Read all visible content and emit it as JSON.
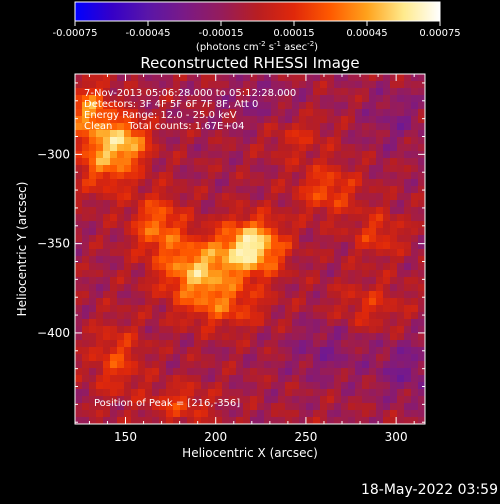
{
  "chart_data": {
    "type": "heatmap",
    "title": "Reconstructed RHESSI Image",
    "xlabel": "Heliocentric X (arcsec)",
    "ylabel": "Heliocentric Y (arcsec)",
    "xlim": [
      122,
      316
    ],
    "ylim": [
      -451,
      -255
    ],
    "x_ticks": [
      150,
      200,
      250,
      300
    ],
    "y_ticks": [
      -300,
      -350,
      -400
    ],
    "colorbar": {
      "min": -0.00075,
      "max": 0.00075,
      "ticks": [
        "-0.00075",
        "-0.00045",
        "-0.00015",
        "0.00015",
        "0.00045",
        "0.00075"
      ],
      "unit_text": "(photons cm",
      "unit_sup1": "-2",
      "unit_mid": " s",
      "unit_sup2": "-1",
      "unit_end": " asec",
      "unit_sup3": "-2",
      "unit_close": ")",
      "colors": [
        "#0000ff",
        "#3500c8",
        "#5a16a8",
        "#7a1a86",
        "#951c5c",
        "#b81e22",
        "#e0280a",
        "#ff5a00",
        "#ffa21c",
        "#ffea8c",
        "#ffffff"
      ]
    },
    "annotations": [
      "7-Nov-2013 05:06:28.000 to 05:12:28.000",
      "Detectors: 3F 4F 5F 6F 7F 8F, Att 0",
      "Energy Range: 12.0 - 25.0 keV",
      "Clean     Total counts: 1.67E+04"
    ],
    "peak_label": "Position of Peak = [216,-356]",
    "peak": [
      216,
      -356
    ],
    "blobs": [
      {
        "x": 220,
        "y": -352,
        "value": 0.00072,
        "sx": 12,
        "sy": 11
      },
      {
        "x": 190,
        "y": -365,
        "value": 0.00055,
        "sx": 14,
        "sy": 12
      },
      {
        "x": 168,
        "y": -340,
        "value": 0.0004,
        "sx": 10,
        "sy": 12
      },
      {
        "x": 140,
        "y": -300,
        "value": 0.00048,
        "sx": 12,
        "sy": 14
      },
      {
        "x": 130,
        "y": -275,
        "value": 0.00042,
        "sx": 8,
        "sy": 10
      },
      {
        "x": 152,
        "y": -292,
        "value": 0.00035,
        "sx": 8,
        "sy": 8
      },
      {
        "x": 262,
        "y": -320,
        "value": 0.00032,
        "sx": 12,
        "sy": 10
      },
      {
        "x": 290,
        "y": -345,
        "value": 0.00025,
        "sx": 10,
        "sy": 9
      },
      {
        "x": 205,
        "y": -385,
        "value": 0.0003,
        "sx": 16,
        "sy": 9
      },
      {
        "x": 145,
        "y": -415,
        "value": 0.00028,
        "sx": 10,
        "sy": 14
      },
      {
        "x": 180,
        "y": -440,
        "value": 0.00025,
        "sx": 12,
        "sy": 8
      },
      {
        "x": 285,
        "y": -385,
        "value": 0.0002,
        "sx": 14,
        "sy": 10
      },
      {
        "x": 245,
        "y": -290,
        "value": 0.00018,
        "sx": 12,
        "sy": 9
      },
      {
        "x": 305,
        "y": -420,
        "value": -0.0002,
        "sx": 12,
        "sy": 12
      },
      {
        "x": 260,
        "y": -410,
        "value": -0.00016,
        "sx": 14,
        "sy": 12
      },
      {
        "x": 225,
        "y": -272,
        "value": -0.00012,
        "sx": 16,
        "sy": 10
      },
      {
        "x": 300,
        "y": -280,
        "value": -0.00014,
        "sx": 12,
        "sy": 12
      }
    ],
    "background": -8e-05
  },
  "footer": {
    "timestamp": "18-May-2022 03:59"
  }
}
